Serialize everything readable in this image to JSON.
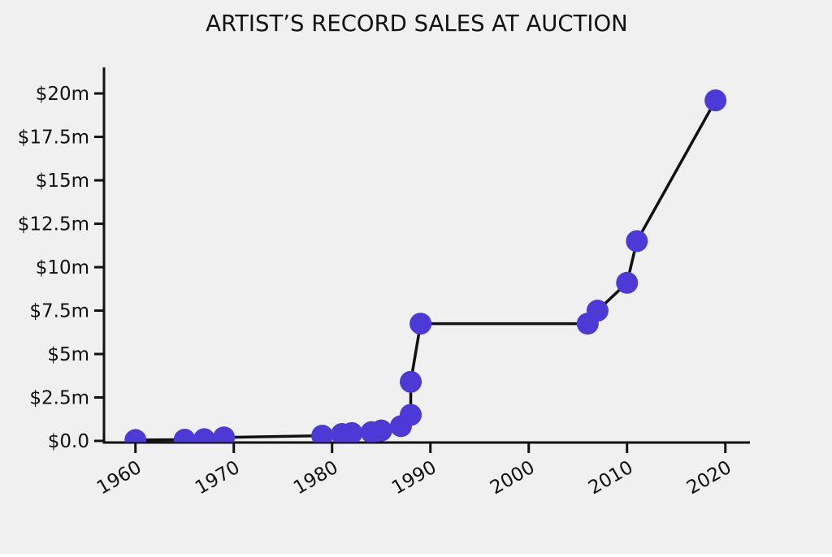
{
  "figure": {
    "background": "#f0f0f0",
    "text_color": "#111111"
  },
  "chart_data": {
    "type": "line",
    "title": "ARTIST’S RECORD SALES AT AUCTION",
    "xlabel": "",
    "ylabel": "",
    "x": [
      1960,
      1965,
      1967,
      1969,
      1979,
      1981,
      1982,
      1984,
      1985,
      1987,
      1988,
      1988,
      1989,
      2006,
      2007,
      2010,
      2011,
      2019
    ],
    "y": [
      0.05,
      0.07,
      0.1,
      0.2,
      0.3,
      0.4,
      0.45,
      0.5,
      0.6,
      0.85,
      1.5,
      3.4,
      6.75,
      6.75,
      7.5,
      9.1,
      11.5,
      19.6
    ],
    "y_unit_millions_usd": true,
    "x_ticks": {
      "values": [
        1960,
        1970,
        1980,
        1990,
        2000,
        2010,
        2020
      ],
      "labels": [
        "1960",
        "1970",
        "1980",
        "1990",
        "2000",
        "2010",
        "2020"
      ],
      "rotation_deg": 30
    },
    "y_ticks": {
      "values": [
        0,
        2.5,
        5,
        7.5,
        10,
        12.5,
        15,
        17.5,
        20
      ],
      "labels": [
        "$0.0",
        "$2.5m",
        "$5m",
        "$7.5m",
        "$10m",
        "$12.5m",
        "$15m",
        "$17.5m",
        "$20m"
      ]
    },
    "xlim": [
      1956.8,
      2022.5
    ],
    "ylim": [
      -0.07,
      21.5
    ],
    "grid": false,
    "legend": false,
    "line_color": "#111111",
    "line_width": 3.5,
    "marker_color": "#4c39d6",
    "marker_radius_px": 13.5,
    "axis_color": "#111111"
  }
}
